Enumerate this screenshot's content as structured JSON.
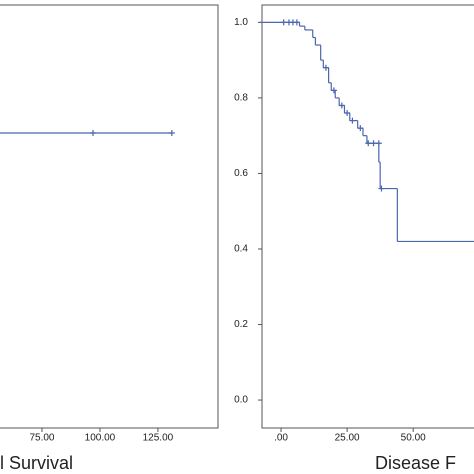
{
  "chart_data": [
    {
      "type": "step",
      "title": "l Survival",
      "color": "#4a66ac",
      "x": [
        57,
        131
      ],
      "y": [
        0.707,
        0.707
      ],
      "censored_x": [
        97,
        131
      ],
      "censored_y": [
        0.707,
        0.707
      ],
      "xlim": [
        56.9,
        150.9
      ],
      "ylim": [
        -0.074,
        1.046
      ],
      "xticks": [
        {
          "value": 75,
          "label": "75.00"
        },
        {
          "value": 100,
          "label": "100.00"
        },
        {
          "value": 125,
          "label": "125.00"
        }
      ]
    },
    {
      "type": "step",
      "title": "Disease F",
      "color": "#4a66ac",
      "x": [
        0,
        7,
        9,
        12,
        13,
        15,
        16,
        18,
        19,
        20.5,
        22,
        24,
        26,
        29,
        31,
        32.5,
        37,
        37.5,
        44,
        73
      ],
      "y": [
        1.0,
        0.99,
        0.98,
        0.96,
        0.94,
        0.9,
        0.88,
        0.84,
        0.82,
        0.8,
        0.78,
        0.76,
        0.74,
        0.72,
        0.7,
        0.68,
        0.63,
        0.56,
        0.42,
        0.42
      ],
      "censored_x": [
        1,
        3,
        4.5,
        6,
        17,
        20,
        23,
        25,
        27,
        30,
        33,
        35,
        37,
        38
      ],
      "censored_y": [
        1.0,
        1.0,
        1.0,
        1.0,
        0.88,
        0.82,
        0.78,
        0.76,
        0.74,
        0.72,
        0.68,
        0.68,
        0.68,
        0.56
      ],
      "xlim": [
        -7.2,
        73
      ],
      "ylim": [
        -0.074,
        1.046
      ],
      "xticks": [
        {
          "value": 0,
          "label": ".00"
        },
        {
          "value": 25,
          "label": "25.00"
        },
        {
          "value": 50,
          "label": "50.00"
        }
      ],
      "yticks": [
        {
          "value": 0,
          "label": "0.0"
        },
        {
          "value": 0.2,
          "label": "0.2"
        },
        {
          "value": 0.4,
          "label": "0.4"
        },
        {
          "value": 0.6,
          "label": "0.6"
        },
        {
          "value": 0.8,
          "label": "0.8"
        },
        {
          "value": 1,
          "label": "1.0"
        }
      ]
    }
  ]
}
